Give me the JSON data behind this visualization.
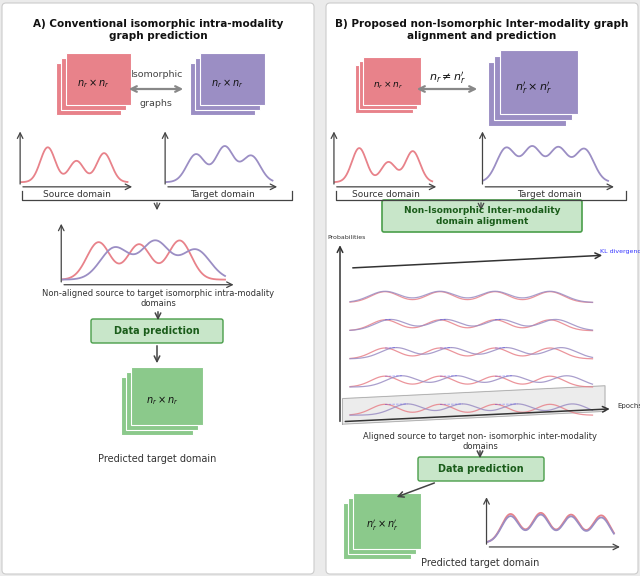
{
  "title_A": "A) Conventional isomorphic intra-modality\ngraph prediction",
  "title_B": "B) Proposed non-Isomorphic Inter-modality graph\nalignment and prediction",
  "pink": "#e8828a",
  "purple": "#9b8ec4",
  "green_bg": "#c8e6c9",
  "green_dark": "#4a9e4a",
  "green_sq": "#8bc98b",
  "arrow_gray": "#888888",
  "dark_gray": "#444444",
  "source_label": "Source domain",
  "target_label": "Target domain",
  "iso_label1": "Isomorphic",
  "iso_label2": "graphs",
  "noniso_box_label": "Non-Isomorphic Inter-modality\ndomain alignment",
  "data_pred_label": "Data prediction",
  "pred_target_label": "Predicted target domain",
  "nonalig_label": "Non-aligned source to target isomorphic intra-modality\ndomains",
  "alig_label": "Aligned source to target non- isomorphic inter-modality\ndomains",
  "epochs_label": "Epochs",
  "kl_label": "KL divergence",
  "probabilities_label": "Probabilities"
}
